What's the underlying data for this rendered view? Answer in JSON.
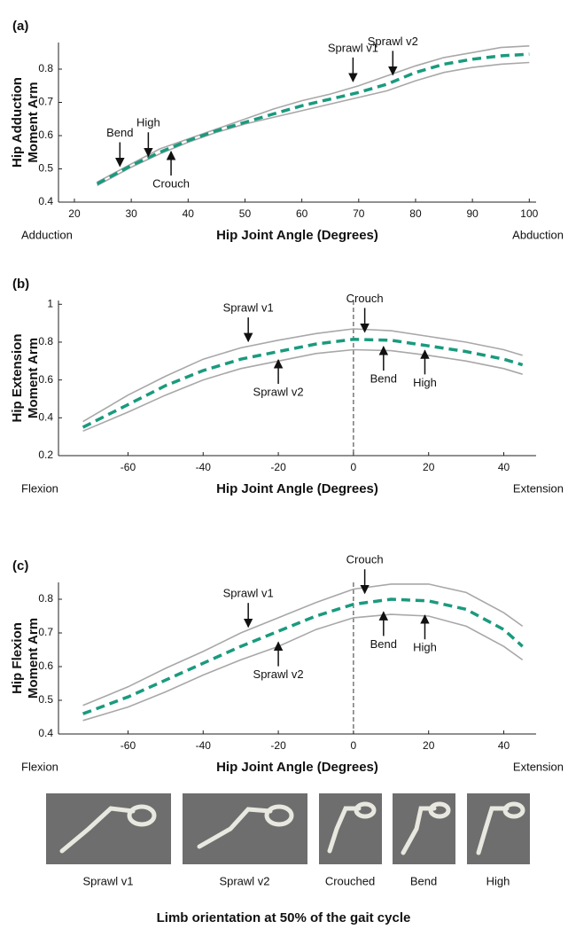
{
  "chart_data": [
    {
      "type": "line",
      "panel_label": "(a)",
      "ylabel_lines": [
        "Hip Adduction",
        "Moment Arm"
      ],
      "xlabel": "Hip Joint Angle (Degrees)",
      "left_label": "Adduction",
      "right_label": "Abduction",
      "x": [
        24,
        30,
        35,
        40,
        45,
        50,
        55,
        60,
        65,
        70,
        75,
        80,
        85,
        90,
        95,
        100
      ],
      "series": [
        {
          "color": "#a8a8a8",
          "dashed": false,
          "values": [
            0.46,
            0.515,
            0.56,
            0.59,
            0.62,
            0.65,
            0.68,
            0.705,
            0.725,
            0.75,
            0.78,
            0.81,
            0.835,
            0.85,
            0.865,
            0.87
          ]
        },
        {
          "color": "#a8a8a8",
          "dashed": false,
          "values": [
            0.45,
            0.505,
            0.545,
            0.58,
            0.61,
            0.635,
            0.655,
            0.675,
            0.695,
            0.715,
            0.735,
            0.765,
            0.79,
            0.805,
            0.815,
            0.82
          ]
        },
        {
          "color": "#1a9a7e",
          "dashed": true,
          "values": [
            0.455,
            0.51,
            0.55,
            0.585,
            0.615,
            0.64,
            0.665,
            0.69,
            0.71,
            0.73,
            0.755,
            0.79,
            0.815,
            0.83,
            0.84,
            0.845
          ]
        }
      ],
      "xlim": [
        17.2,
        101.2
      ],
      "xticks": [
        20,
        30,
        40,
        50,
        60,
        70,
        80,
        90,
        100
      ],
      "ylim": [
        0.4,
        0.88
      ],
      "yticks": [
        0.4,
        0.5,
        0.6,
        0.7,
        0.8
      ],
      "annotations": [
        {
          "text": "Bend",
          "x": 28,
          "y": 0.5,
          "direction": "down"
        },
        {
          "text": "High",
          "x": 33,
          "y": 0.53,
          "direction": "down"
        },
        {
          "text": "Crouch",
          "x": 37,
          "y": 0.56,
          "direction": "up"
        },
        {
          "text": "Sprawl v1",
          "x": 69,
          "y": 0.755,
          "direction": "down"
        },
        {
          "text": "Sprawl v2",
          "x": 76,
          "y": 0.775,
          "direction": "down"
        }
      ]
    },
    {
      "type": "line",
      "panel_label": "(b)",
      "ylabel_lines": [
        "Hip Extension",
        "Moment Arm"
      ],
      "xlabel": "Hip Joint Angle (Degrees)",
      "left_label": "Flexion",
      "right_label": "Extension",
      "vline": 0,
      "x": [
        -72,
        -60,
        -50,
        -40,
        -30,
        -20,
        -10,
        0,
        10,
        20,
        30,
        40,
        45
      ],
      "series": [
        {
          "color": "#a8a8a8",
          "dashed": false,
          "values": [
            0.38,
            0.52,
            0.62,
            0.71,
            0.77,
            0.81,
            0.845,
            0.87,
            0.86,
            0.83,
            0.8,
            0.76,
            0.73
          ]
        },
        {
          "color": "#a8a8a8",
          "dashed": false,
          "values": [
            0.33,
            0.43,
            0.52,
            0.6,
            0.66,
            0.7,
            0.74,
            0.76,
            0.755,
            0.73,
            0.7,
            0.66,
            0.63
          ]
        },
        {
          "color": "#1a9a7e",
          "dashed": true,
          "values": [
            0.35,
            0.47,
            0.57,
            0.65,
            0.71,
            0.75,
            0.79,
            0.815,
            0.81,
            0.78,
            0.75,
            0.71,
            0.68
          ]
        }
      ],
      "xlim": [
        -78.5,
        48.6
      ],
      "xticks": [
        -60,
        -40,
        -20,
        0,
        20,
        40
      ],
      "ylim": [
        0.2,
        1.02
      ],
      "yticks": [
        0.2,
        0.4,
        0.6,
        0.8,
        1
      ],
      "annotations": [
        {
          "text": "Sprawl v1",
          "x": -28,
          "y": 0.79,
          "direction": "down"
        },
        {
          "text": "Sprawl v2",
          "x": -20,
          "y": 0.72,
          "direction": "up"
        },
        {
          "text": "Crouch",
          "x": 3,
          "y": 0.84,
          "direction": "down"
        },
        {
          "text": "Bend",
          "x": 8,
          "y": 0.79,
          "direction": "up"
        },
        {
          "text": "High",
          "x": 19,
          "y": 0.77,
          "direction": "up"
        }
      ]
    },
    {
      "type": "line",
      "panel_label": "(c)",
      "ylabel_lines": [
        "Hip Flexion",
        "Moment Arm"
      ],
      "xlabel": "Hip Joint Angle (Degrees)",
      "left_label": "Flexion",
      "right_label": "Extension",
      "vline": 0,
      "x": [
        -72,
        -60,
        -50,
        -40,
        -30,
        -20,
        -10,
        0,
        10,
        20,
        30,
        40,
        45
      ],
      "series": [
        {
          "color": "#a8a8a8",
          "dashed": false,
          "values": [
            0.485,
            0.54,
            0.595,
            0.645,
            0.7,
            0.745,
            0.79,
            0.83,
            0.845,
            0.845,
            0.82,
            0.76,
            0.72
          ]
        },
        {
          "color": "#a8a8a8",
          "dashed": false,
          "values": [
            0.44,
            0.48,
            0.525,
            0.575,
            0.62,
            0.66,
            0.71,
            0.745,
            0.755,
            0.75,
            0.72,
            0.66,
            0.62
          ]
        },
        {
          "color": "#1a9a7e",
          "dashed": true,
          "values": [
            0.46,
            0.51,
            0.56,
            0.61,
            0.66,
            0.705,
            0.75,
            0.785,
            0.8,
            0.795,
            0.77,
            0.71,
            0.66
          ]
        }
      ],
      "xlim": [
        -78.5,
        48.6
      ],
      "xticks": [
        -60,
        -40,
        -20,
        0,
        20,
        40
      ],
      "ylim": [
        0.4,
        0.85
      ],
      "yticks": [
        0.4,
        0.5,
        0.6,
        0.7,
        0.8
      ],
      "annotations": [
        {
          "text": "Sprawl v1",
          "x": -28,
          "y": 0.71,
          "direction": "down"
        },
        {
          "text": "Sprawl v2",
          "x": -20,
          "y": 0.68,
          "direction": "up"
        },
        {
          "text": "Crouch",
          "x": 3,
          "y": 0.81,
          "direction": "down"
        },
        {
          "text": "Bend",
          "x": 8,
          "y": 0.77,
          "direction": "up"
        },
        {
          "text": "High",
          "x": 19,
          "y": 0.76,
          "direction": "up"
        }
      ]
    }
  ],
  "figure": {
    "image_labels": [
      "Sprawl v1",
      "Sprawl v2",
      "Crouched",
      "Bend",
      "High"
    ],
    "caption": "Limb orientation at 50% of the gait cycle"
  }
}
